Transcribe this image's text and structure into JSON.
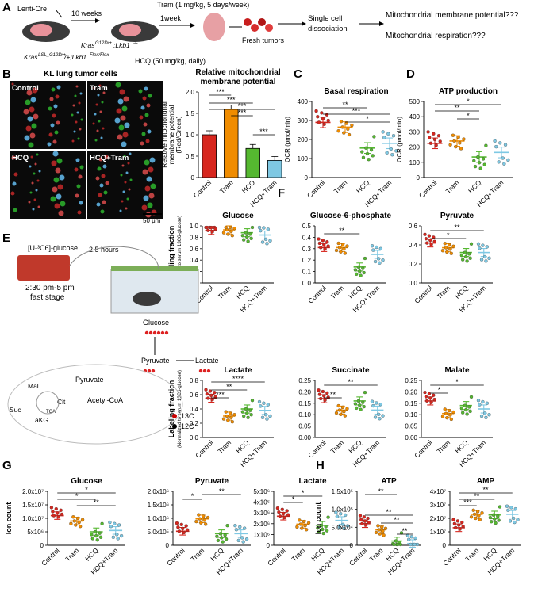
{
  "panel_letters": [
    "A",
    "B",
    "C",
    "D",
    "E",
    "F",
    "G",
    "H"
  ],
  "panelA": {
    "lenti": "Lenti-Cre",
    "weeks": "10 weeks",
    "week1": "1week",
    "tram": "Tram (1 mg/kg, 5 days/week)",
    "genotype1": "Kras^{G12D/+};Lkb1^{-/-}",
    "genotype2": "Kras^{LSL_G12D/+};Lkb1^{Flox/Flox}",
    "hcq": "HCQ (50 mg/kg, daily)",
    "fresh": "Fresh tumors",
    "dissoc1": "Single cell",
    "dissoc2": "dissociation",
    "q1": "Mitochondrial membrane potential???",
    "q2": "Mitochondrial respiration???"
  },
  "panelB": {
    "title": "KL lung tumor cells",
    "labels": [
      "Control",
      "Tram",
      "HCQ",
      "HCQ+Tram"
    ],
    "scale": "50 μm"
  },
  "panelE": {
    "tracer": "[U¹³C6]-glucose",
    "time": "2.5 hours",
    "schedule1": "2:30 pm-5 pm",
    "schedule2": "fast stage",
    "metabolites": [
      "Glucose",
      "Pyruvate",
      "Lactate",
      "Pyruvate",
      "Acetyl-CoA",
      "Mal",
      "Cit",
      "Suc",
      "aKG",
      "TCA"
    ],
    "legend": [
      "13C",
      "12C"
    ]
  },
  "colors": {
    "Control": "#d7261e",
    "Tram": "#f08c00",
    "HCQ": "#55b830",
    "HCQ+Tram": "#7ec8e3"
  },
  "chart_data": [
    {
      "id": "B-bar",
      "type": "bar",
      "title": "Relative mitochondrial membrane potential",
      "ylabel": "Relative mitochondrial membrane potential (Red/Green)",
      "categories": [
        "Control",
        "Tram",
        "HCQ",
        "HCQ+Tram"
      ],
      "values": [
        1.0,
        1.6,
        0.68,
        0.4
      ],
      "ylim": [
        0,
        2.0
      ],
      "yticks": [
        "0",
        "0.5",
        "1.0",
        "1.5",
        "2.0"
      ],
      "sig": [
        "***",
        "***",
        "***",
        "***",
        "***"
      ]
    },
    {
      "id": "C",
      "type": "bar",
      "title": "Basal respiration",
      "ylabel": "OCR (pmol/min)",
      "categories": [
        "Control",
        "Tram",
        "HCQ",
        "HCQ+Tram"
      ],
      "values": [
        290,
        265,
        155,
        180
      ],
      "ylim": [
        0,
        400
      ],
      "yticks": [
        "0",
        "100",
        "200",
        "300",
        "400"
      ],
      "sig": [
        "**",
        "***",
        "*"
      ]
    },
    {
      "id": "D",
      "type": "bar",
      "title": "ATP production",
      "ylabel": "OCR (pmol/min)",
      "categories": [
        "Control",
        "Tram",
        "HCQ",
        "HCQ+Tram"
      ],
      "values": [
        225,
        240,
        135,
        165
      ],
      "ylim": [
        0,
        500
      ],
      "yticks": [
        "0",
        "100",
        "200",
        "300",
        "400",
        "500"
      ],
      "sig": [
        "*",
        "**",
        "*"
      ]
    },
    {
      "id": "F1",
      "type": "bar",
      "title": "Glucose",
      "ylabel": "Labeling fraction",
      "ylabel2": "(Normalized to serum 13C6-glucose)",
      "categories": [
        "Control",
        "Tram",
        "HCQ",
        "HCQ+Tram"
      ],
      "values": [
        0.92,
        0.93,
        0.88,
        0.84
      ],
      "ylim": [
        0,
        1.0
      ],
      "yticks": [
        "0.0",
        "0.2",
        "0.4",
        "0.6",
        "0.8",
        "1.0"
      ],
      "sig": []
    },
    {
      "id": "F2",
      "type": "bar",
      "title": "Glucose-6-phosphate",
      "categories": [
        "Control",
        "Tram",
        "HCQ",
        "HCQ+Tram"
      ],
      "values": [
        0.31,
        0.31,
        0.14,
        0.25
      ],
      "ylim": [
        0,
        0.5
      ],
      "yticks": [
        "0.0",
        "0.1",
        "0.2",
        "0.3",
        "0.4",
        "0.5"
      ],
      "sig": [
        "**"
      ]
    },
    {
      "id": "F3",
      "type": "bar",
      "title": "Pyruvate",
      "categories": [
        "Control",
        "Tram",
        "HCQ",
        "HCQ+Tram"
      ],
      "values": [
        0.42,
        0.37,
        0.32,
        0.32
      ],
      "ylim": [
        0,
        0.6
      ],
      "yticks": [
        "0.0",
        "0.2",
        "0.4",
        "0.6"
      ],
      "sig": [
        "**",
        "*"
      ]
    },
    {
      "id": "F4",
      "type": "bar",
      "title": "Lactate",
      "ylabel": "Labeling fraction",
      "ylabel2": "(Normalized to serum 13C6-glucose)",
      "categories": [
        "Control",
        "Tram",
        "HCQ",
        "HCQ+Tram"
      ],
      "values": [
        0.55,
        0.3,
        0.4,
        0.38
      ],
      "ylim": [
        0,
        0.8
      ],
      "yticks": [
        "0.0",
        "0.2",
        "0.4",
        "0.6",
        "0.8"
      ],
      "sig": [
        "***",
        "**",
        "****"
      ]
    },
    {
      "id": "F5",
      "type": "bar",
      "title": "Succinate",
      "categories": [
        "Control",
        "Tram",
        "HCQ",
        "HCQ+Tram"
      ],
      "values": [
        0.17,
        0.12,
        0.16,
        0.12
      ],
      "ylim": [
        0,
        0.25
      ],
      "yticks": [
        "0.00",
        "0.05",
        "0.10",
        "0.15",
        "0.20",
        "0.25"
      ],
      "sig": [
        "**",
        "**"
      ]
    },
    {
      "id": "F6",
      "type": "bar",
      "title": "Malate",
      "categories": [
        "Control",
        "Tram",
        "HCQ",
        "HCQ+Tram"
      ],
      "values": [
        0.16,
        0.105,
        0.14,
        0.125
      ],
      "ylim": [
        0,
        0.25
      ],
      "yticks": [
        "0.00",
        "0.05",
        "0.10",
        "0.15",
        "0.20",
        "0.25"
      ],
      "sig": [
        "*",
        "*"
      ]
    },
    {
      "id": "G1",
      "type": "bar",
      "title": "Glucose",
      "ylabel": "Ion count",
      "categories": [
        "Control",
        "Tram",
        "HCQ",
        "HCQ+Tram"
      ],
      "values": [
        11000000,
        9000000,
        5000000,
        5500000
      ],
      "ylim": [
        0,
        20000000
      ],
      "yticks": [
        "0",
        "5x10⁶",
        "1.0x10⁷",
        "1.5x10⁷",
        "2.0x10⁷"
      ],
      "sig": [
        "*",
        "*",
        "**"
      ]
    },
    {
      "id": "G2",
      "type": "bar",
      "title": "Pyruvate",
      "categories": [
        "Control",
        "Tram",
        "HCQ",
        "HCQ+Tram"
      ],
      "values": [
        520000,
        980000,
        430000,
        430000
      ],
      "ylim": [
        0,
        2000000
      ],
      "yticks": [
        "0",
        "5.0x10⁵",
        "1.0x10⁶",
        "1.5x10⁶",
        "2.0x10⁶"
      ],
      "sig": [
        "*",
        "**"
      ]
    },
    {
      "id": "G3",
      "type": "bar",
      "title": "Lactate",
      "categories": [
        "Control",
        "Tram",
        "HCQ",
        "HCQ+Tram"
      ],
      "values": [
        2700000,
        1950000,
        1850000,
        2300000
      ],
      "ylim": [
        0,
        5000000
      ],
      "yticks": [
        "0",
        "1x10⁶",
        "2x10⁶",
        "3x10⁶",
        "4x10⁶",
        "5x10⁶"
      ],
      "sig": [
        "*",
        "*"
      ]
    },
    {
      "id": "H1",
      "type": "bar",
      "title": "ATP",
      "ylabel": "Ion count",
      "categories": [
        "Control",
        "Tram",
        "HCQ",
        "HCQ+Tram"
      ],
      "values": [
        60000,
        43000,
        12000,
        5000
      ],
      "ylim": [
        0,
        150000
      ],
      "yticks": [
        "0",
        "5.0x10⁴",
        "1.0x10⁵",
        "1.5x10⁵"
      ],
      "sig": [
        "**",
        "**",
        "**",
        "**"
      ]
    },
    {
      "id": "H2",
      "type": "bar",
      "title": "AMP",
      "categories": [
        "Control",
        "Tram",
        "HCQ",
        "HCQ+Tram"
      ],
      "values": [
        13000000,
        23000000,
        22500000,
        23000000
      ],
      "ylim": [
        0,
        40000000
      ],
      "yticks": [
        "0",
        "1x10⁷",
        "2x10⁷",
        "3x10⁷",
        "4x10⁷"
      ],
      "sig": [
        "**",
        "**",
        "***"
      ]
    }
  ]
}
